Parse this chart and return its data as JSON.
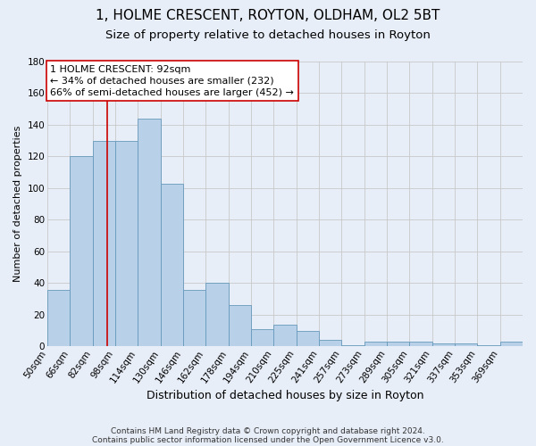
{
  "title": "1, HOLME CRESCENT, ROYTON, OLDHAM, OL2 5BT",
  "subtitle": "Size of property relative to detached houses in Royton",
  "xlabel": "Distribution of detached houses by size in Royton",
  "ylabel": "Number of detached properties",
  "bar_labels": [
    "50sqm",
    "66sqm",
    "82sqm",
    "98sqm",
    "114sqm",
    "130sqm",
    "146sqm",
    "162sqm",
    "178sqm",
    "194sqm",
    "210sqm",
    "225sqm",
    "241sqm",
    "257sqm",
    "273sqm",
    "289sqm",
    "305sqm",
    "321sqm",
    "337sqm",
    "353sqm",
    "369sqm"
  ],
  "bar_values": [
    36,
    120,
    130,
    130,
    144,
    103,
    36,
    40,
    26,
    11,
    14,
    10,
    4,
    1,
    3,
    3,
    3,
    2,
    2,
    1,
    3
  ],
  "bar_color": "#b8d0e8",
  "bar_edge_color": "#6699bb",
  "background_color": "#e8eef8",
  "grid_color": "#c8c8c8",
  "vline_x": 92,
  "vline_color": "#cc0000",
  "annotation_text": "1 HOLME CRESCENT: 92sqm\n← 34% of detached houses are smaller (232)\n66% of semi-detached houses are larger (452) →",
  "annotation_box_facecolor": "#ffffff",
  "annotation_box_edge": "#cc0000",
  "ylim": [
    0,
    180
  ],
  "yticks": [
    0,
    20,
    40,
    60,
    80,
    100,
    120,
    140,
    160,
    180
  ],
  "footer1": "Contains HM Land Registry data © Crown copyright and database right 2024.",
  "footer2": "Contains public sector information licensed under the Open Government Licence v3.0.",
  "title_fontsize": 11,
  "subtitle_fontsize": 9.5,
  "xlabel_fontsize": 9,
  "ylabel_fontsize": 8,
  "tick_fontsize": 7.5,
  "annotation_fontsize": 8,
  "footer_fontsize": 6.5
}
